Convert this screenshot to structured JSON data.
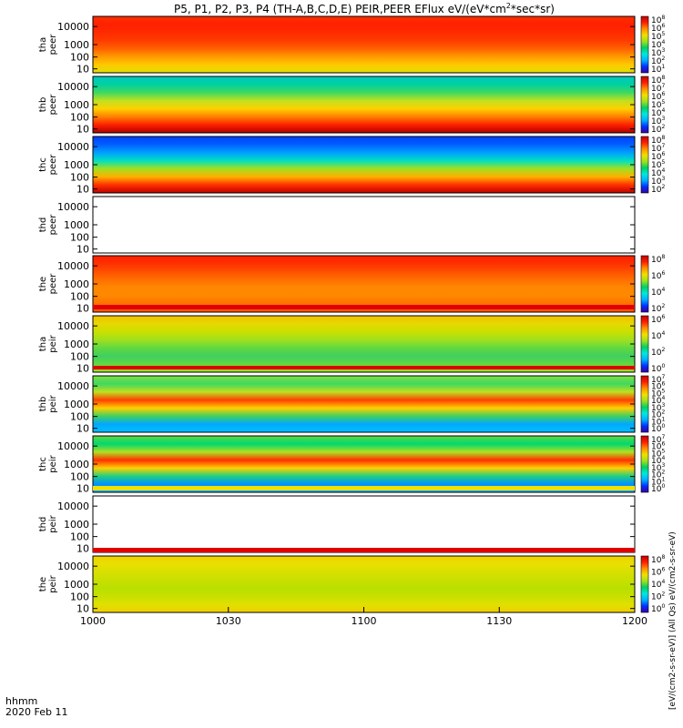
{
  "chart_data": {
    "type": "heatmap",
    "title": "P5, P1, P2, P3, P4 (TH-A,B,C,D,E) PEIR,PEER EFlux eV/(eV*cm",
    "title_sup": "2",
    "title_tail": "*sec*sr)",
    "x_label": "hhmm",
    "date_label": "2020 Feb 11",
    "x_ticks": [
      "1000",
      "1030",
      "1100",
      "1130",
      "1200"
    ],
    "y_ticks": [
      "10",
      "100",
      "1000",
      "10000"
    ],
    "y_scale": "log",
    "x_range": [
      "1000",
      "1200"
    ],
    "colorbar_labels": {
      "p0": [
        "10^8",
        "10^6",
        "10^5",
        "10^4",
        "10^3",
        "10^2",
        "10^1"
      ],
      "p1": [
        "10^8",
        "10^7",
        "10^6",
        "10^5",
        "10^4",
        "10^3",
        "10^2"
      ],
      "p2": [
        "10^8",
        "10^7",
        "10^6",
        "10^5",
        "10^4",
        "10^3",
        "10^2"
      ],
      "p4": [
        "10^8",
        "10^6",
        "10^4",
        "10^2"
      ],
      "p5": [
        "10^6",
        "10^4",
        "10^2",
        "10^0"
      ],
      "p6": [
        "10^7",
        "10^6",
        "10^5",
        "10^4",
        "10^3",
        "10^2",
        "10^1",
        "10^0"
      ],
      "p7": [
        "10^7",
        "10^6",
        "10^5",
        "10^4",
        "10^3",
        "10^2",
        "10^1",
        "10^0"
      ],
      "p9": [
        "10^8",
        "10^6",
        "10^4",
        "10^2",
        "10^0"
      ]
    },
    "colorbar_title": "[eV/(cm2-s-sr-eV)] (All Qs) eV/(cm2-s-sr-eV)",
    "panels": [
      {
        "label": [
          "tha",
          "peer"
        ],
        "has_data": true
      },
      {
        "label": [
          "thb",
          "peer"
        ],
        "has_data": true
      },
      {
        "label": [
          "thc",
          "peer"
        ],
        "has_data": true
      },
      {
        "label": [
          "thd",
          "peer"
        ],
        "has_data": false
      },
      {
        "label": [
          "the",
          "peer"
        ],
        "has_data": true
      },
      {
        "label": [
          "tha",
          "peir"
        ],
        "has_data": true
      },
      {
        "label": [
          "thb",
          "peir"
        ],
        "has_data": true
      },
      {
        "label": [
          "thc",
          "peir"
        ],
        "has_data": true
      },
      {
        "label": [
          "thd",
          "peir"
        ],
        "has_data": false
      },
      {
        "label": [
          "the",
          "peir"
        ],
        "has_data": true
      }
    ]
  }
}
